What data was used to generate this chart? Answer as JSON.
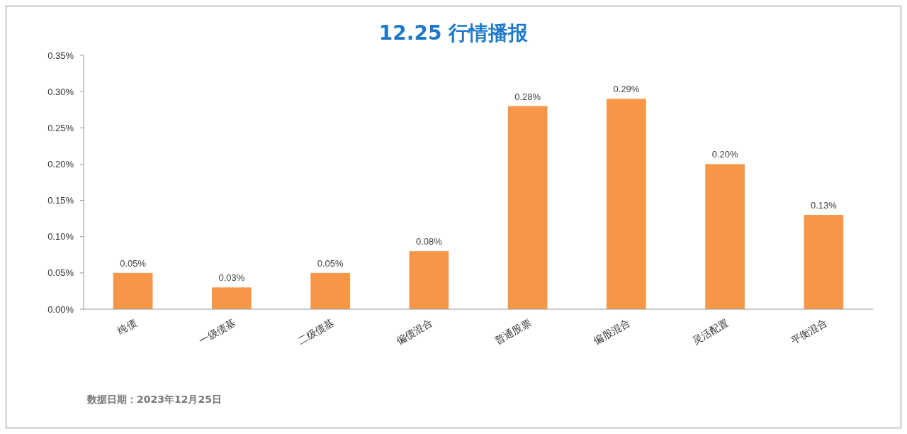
{
  "chart_data": {
    "type": "bar",
    "title": "12.25 行情播报",
    "categories": [
      "纯债",
      "一级债基",
      "二级债基",
      "偏债混合",
      "普通股票",
      "偏股混合",
      "灵活配置",
      "平衡混合"
    ],
    "values": [
      0.05,
      0.03,
      0.05,
      0.08,
      0.28,
      0.29,
      0.2,
      0.13
    ],
    "value_labels": [
      "0.05%",
      "0.03%",
      "0.05%",
      "0.08%",
      "0.28%",
      "0.29%",
      "0.20%",
      "0.13%"
    ],
    "color": "#f79646",
    "ylim": [
      0,
      0.35
    ],
    "yticks": [
      {
        "value": 0,
        "label": "0.00%"
      },
      {
        "value": 0.05,
        "label": "0.05%"
      },
      {
        "value": 0.1,
        "label": "0.10%"
      },
      {
        "value": 0.15,
        "label": "0.15%"
      },
      {
        "value": 0.2,
        "label": "0.20%"
      },
      {
        "value": 0.25,
        "label": "0.25%"
      },
      {
        "value": 0.3,
        "label": "0.30%"
      },
      {
        "value": 0.35,
        "label": "0.35%"
      }
    ],
    "grid": false,
    "annotations": [
      "数据日期：2023年12月25日"
    ]
  }
}
